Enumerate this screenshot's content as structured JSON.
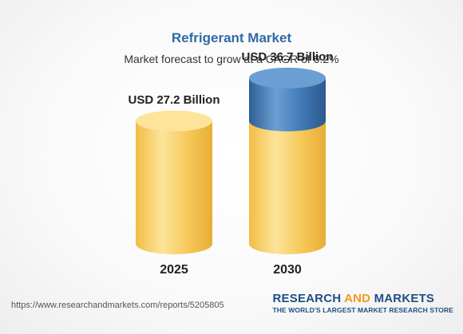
{
  "chart_data": {
    "type": "bar",
    "title": "Refrigerant Market",
    "subtitle": "Market forecast to grow at a CAGR of 6.2%",
    "categories": [
      "2025",
      "2030"
    ],
    "values": [
      27.2,
      36.7
    ],
    "value_labels": [
      "USD 27.2 Billion",
      "USD 36.7 Billion"
    ],
    "base_value": 27.2,
    "unit": "USD Billion",
    "colors": {
      "base": "#f5c757",
      "base_light": "#fde49a",
      "base_dark": "#eab03a",
      "growth": "#3f78b4",
      "growth_light": "#6b9fd4",
      "growth_dark": "#2f5f95"
    }
  },
  "footer": {
    "url": "https://www.researchandmarkets.com/reports/5205805",
    "brand_part1": "RESEARCH ",
    "brand_part2": "AND",
    "brand_part3": " MARKETS",
    "tagline": "THE WORLD'S LARGEST MARKET RESEARCH STORE"
  }
}
